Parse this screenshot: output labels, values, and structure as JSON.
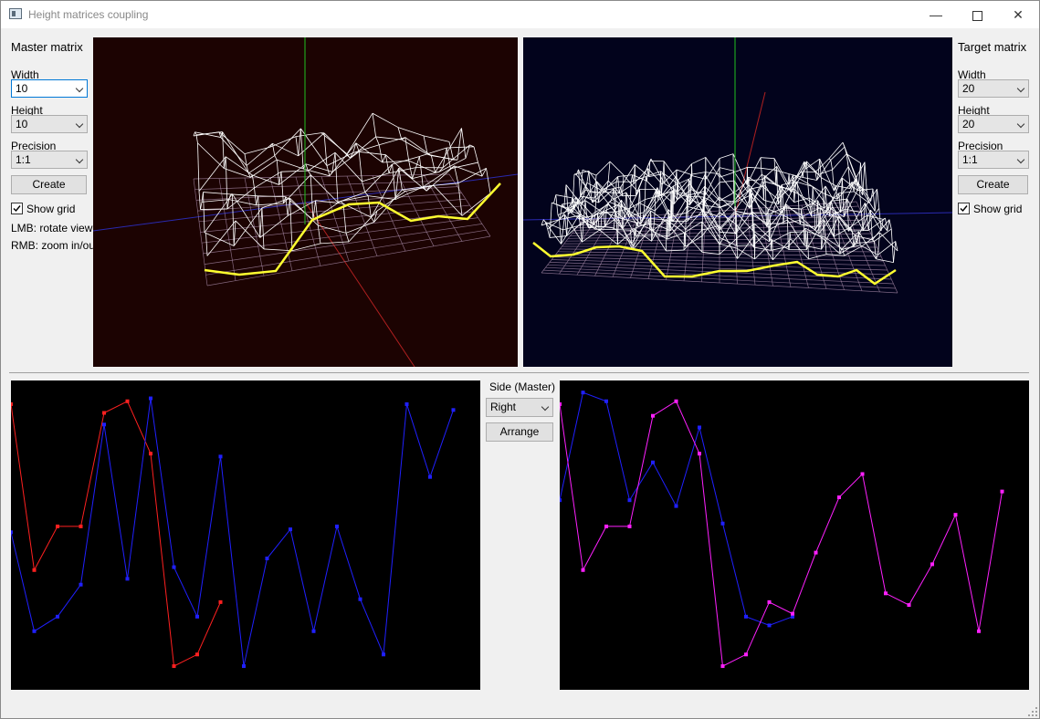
{
  "window": {
    "title": "Height matrices coupling"
  },
  "master": {
    "heading": "Master matrix",
    "width_label": "Width",
    "width_value": "10",
    "height_label": "Height",
    "height_value": "10",
    "precision_label": "Precision",
    "precision_value": "1:1",
    "create_label": "Create",
    "show_grid_label": "Show grid",
    "show_grid_checked": true,
    "hint_lmb": "LMB: rotate view",
    "hint_rmb": "RMB: zoom in/out"
  },
  "target": {
    "heading": "Target matrix",
    "width_label": "Width",
    "width_value": "20",
    "height_label": "Height",
    "height_value": "20",
    "precision_label": "Precision",
    "precision_value": "1:1",
    "create_label": "Create",
    "show_grid_label": "Show grid",
    "show_grid_checked": true
  },
  "side": {
    "label": "Side (Master)",
    "value": "Right",
    "arrange_label": "Arrange"
  },
  "colors": {
    "master_bg": "#1c0302",
    "target_bg": "#02031c",
    "red": "#ff2020",
    "blue": "#2020ff",
    "magenta": "#ff20ff",
    "yellow": "#ffff30"
  },
  "chart_data": [
    {
      "type": "line",
      "series": [
        {
          "color": "red",
          "values": [
            0.95,
            0.38,
            0.53,
            0.53,
            0.92,
            0.96,
            0.78,
            0.05,
            0.09,
            0.27
          ]
        },
        {
          "color": "blue",
          "values": [
            0.51,
            0.17,
            0.22,
            0.33,
            0.88,
            0.35,
            0.97,
            0.39,
            0.22,
            0.77,
            0.05,
            0.42,
            0.52,
            0.17,
            0.53,
            0.28,
            0.09,
            0.95,
            0.7,
            0.93
          ]
        }
      ]
    },
    {
      "type": "line",
      "series": [
        {
          "color": "blue",
          "values": [
            0.62,
            0.99,
            0.96,
            0.62,
            0.75,
            0.6,
            0.87,
            0.54,
            0.22,
            0.19,
            0.22
          ]
        },
        {
          "color": "magenta",
          "values": [
            0.95,
            0.38,
            0.53,
            0.53,
            0.91,
            0.96,
            0.78,
            0.05,
            0.09,
            0.27,
            0.23,
            0.44,
            0.63,
            0.71,
            0.3,
            0.26,
            0.4,
            0.57,
            0.17,
            0.65
          ]
        }
      ]
    }
  ]
}
